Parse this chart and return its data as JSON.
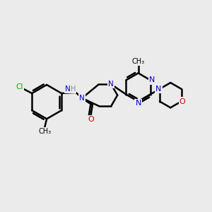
{
  "background_color": "#ebebeb",
  "bond_color": "#000000",
  "bond_width": 1.8,
  "atom_colors": {
    "C": "#000000",
    "N": "#0000cc",
    "O": "#cc0000",
    "Cl": "#00aa00",
    "H": "#888888"
  },
  "figsize": [
    3.0,
    3.0
  ],
  "dpi": 100
}
